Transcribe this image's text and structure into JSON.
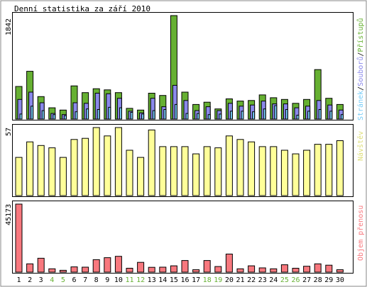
{
  "chart_data": [
    {
      "type": "bar",
      "title": "Denní statistika za září 2010",
      "ymax_label": "1842",
      "ymax": 1842,
      "legend_parts": [
        "Přístupů",
        "/",
        "Souborů",
        "/",
        "Stránek"
      ],
      "categories": [
        "1",
        "2",
        "3",
        "4",
        "5",
        "6",
        "7",
        "8",
        "9",
        "10",
        "11",
        "12",
        "13",
        "14",
        "15",
        "16",
        "17",
        "18",
        "19",
        "20",
        "21",
        "22",
        "23",
        "24",
        "25",
        "26",
        "27",
        "28",
        "29",
        "30"
      ],
      "weekend_days": [
        "4",
        "5",
        "11",
        "12",
        "18",
        "19",
        "25",
        "26"
      ],
      "series": [
        {
          "name": "Přístupů",
          "values": [
            580,
            850,
            400,
            200,
            160,
            590,
            470,
            540,
            520,
            470,
            190,
            160,
            460,
            420,
            1842,
            480,
            260,
            300,
            180,
            360,
            320,
            330,
            430,
            380,
            350,
            280,
            350,
            880,
            370,
            260
          ]
        },
        {
          "name": "Souborů",
          "values": [
            350,
            480,
            290,
            100,
            80,
            290,
            280,
            460,
            450,
            370,
            140,
            110,
            370,
            220,
            600,
            330,
            150,
            220,
            150,
            280,
            230,
            250,
            320,
            270,
            270,
            200,
            230,
            330,
            250,
            160
          ]
        },
        {
          "name": "Stránek",
          "values": [
            90,
            230,
            150,
            80,
            60,
            130,
            180,
            170,
            210,
            200,
            120,
            90,
            150,
            170,
            260,
            100,
            100,
            80,
            90,
            140,
            140,
            130,
            180,
            240,
            170,
            70,
            140,
            170,
            140,
            80
          ]
        }
      ],
      "colors": {
        "Přístupů": "#66b032",
        "Souborů": "#8a88ea",
        "Stránek": "#77ccf8",
        "title_stanek": "#77ccf8"
      }
    },
    {
      "type": "bar",
      "ymax_label": "57",
      "ymax": 57,
      "legend": "Návštěv",
      "values": [
        32,
        45,
        42,
        40,
        32,
        47,
        48,
        57,
        50,
        57,
        38,
        32,
        55,
        41,
        41,
        41,
        35,
        41,
        40,
        50,
        47,
        45,
        41,
        41,
        38,
        35,
        38,
        43,
        43,
        46
      ],
      "color": "#ffff99"
    },
    {
      "type": "bar",
      "ymax_label": "45173",
      "ymax": 45173,
      "legend": "Objem přenosu",
      "values": [
        45173,
        5500,
        9200,
        2200,
        1200,
        3500,
        3300,
        8300,
        9600,
        10500,
        2600,
        6500,
        3200,
        3300,
        4200,
        7700,
        1600,
        7700,
        3700,
        12000,
        2200,
        4200,
        2800,
        2200,
        4900,
        2600,
        3900,
        5500,
        4600,
        1600
      ],
      "color": "#f8787e"
    }
  ]
}
